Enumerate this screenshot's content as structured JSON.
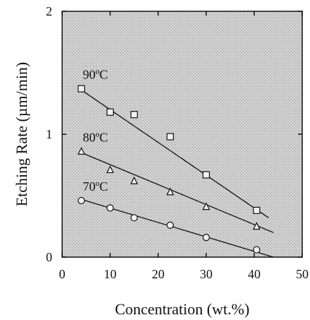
{
  "chart_data": {
    "type": "scatter",
    "title": "",
    "xlabel": "Concentration (wt.%)",
    "ylabel": "Etching Rate (µm/min)",
    "xlim": [
      0,
      50
    ],
    "ylim": [
      0,
      2
    ],
    "x_ticks": [
      "0",
      "10",
      "20",
      "30",
      "40",
      "50"
    ],
    "y_ticks": [
      "0",
      "1",
      "2"
    ],
    "grid": false,
    "background": "stippled gray",
    "series": [
      {
        "name": "90ºC",
        "marker": "square",
        "points": [
          [
            4,
            1.37
          ],
          [
            10,
            1.18
          ],
          [
            15,
            1.16
          ],
          [
            22.5,
            0.98
          ],
          [
            30,
            0.67
          ],
          [
            40.5,
            0.38
          ]
        ],
        "fit": [
          [
            4,
            1.36
          ],
          [
            43,
            0.32
          ]
        ]
      },
      {
        "name": "80ºC",
        "marker": "triangle",
        "points": [
          [
            4,
            0.86
          ],
          [
            10,
            0.71
          ],
          [
            15,
            0.62
          ],
          [
            22.5,
            0.53
          ],
          [
            30,
            0.41
          ],
          [
            40.5,
            0.25
          ]
        ],
        "fit": [
          [
            4,
            0.85
          ],
          [
            44,
            0.2
          ]
        ]
      },
      {
        "name": "70ºC",
        "marker": "circle",
        "points": [
          [
            4,
            0.46
          ],
          [
            10,
            0.4
          ],
          [
            15,
            0.32
          ],
          [
            22.5,
            0.26
          ],
          [
            30,
            0.16
          ],
          [
            40.5,
            0.06
          ]
        ],
        "fit": [
          [
            4,
            0.47
          ],
          [
            44,
            0.0
          ]
        ]
      }
    ]
  }
}
